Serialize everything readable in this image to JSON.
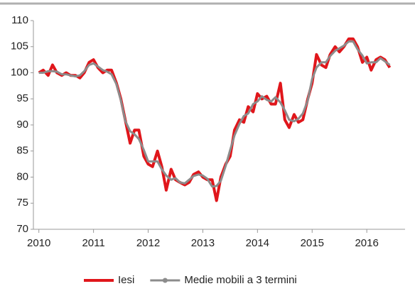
{
  "chart_data": {
    "type": "line",
    "x": [
      2010,
      2010.08,
      2010.17,
      2010.25,
      2010.33,
      2010.42,
      2010.5,
      2010.58,
      2010.67,
      2010.75,
      2010.83,
      2010.92,
      2011,
      2011.08,
      2011.17,
      2011.25,
      2011.33,
      2011.42,
      2011.5,
      2011.58,
      2011.67,
      2011.75,
      2011.83,
      2011.92,
      2012,
      2012.08,
      2012.17,
      2012.25,
      2012.33,
      2012.42,
      2012.5,
      2012.58,
      2012.67,
      2012.75,
      2012.83,
      2012.92,
      2013,
      2013.08,
      2013.17,
      2013.25,
      2013.33,
      2013.42,
      2013.5,
      2013.58,
      2013.67,
      2013.75,
      2013.83,
      2013.92,
      2014,
      2014.08,
      2014.17,
      2014.25,
      2014.33,
      2014.42,
      2014.5,
      2014.58,
      2014.67,
      2014.75,
      2014.83,
      2014.92,
      2015,
      2015.08,
      2015.17,
      2015.25,
      2015.33,
      2015.42,
      2015.5,
      2015.58,
      2015.67,
      2015.75,
      2015.83,
      2015.92,
      2016,
      2016.08,
      2016.17,
      2016.25,
      2016.33,
      2016.42
    ],
    "series": [
      {
        "name": "Iesi",
        "color": "#e0161b",
        "values": [
          100,
          100.5,
          99.5,
          101.5,
          100,
          99.5,
          100,
          99.5,
          99.5,
          99,
          100,
          102,
          102.5,
          101,
          100,
          100.5,
          100.5,
          98,
          95,
          91,
          86.5,
          89,
          89,
          84,
          82.5,
          82,
          85,
          82,
          77.5,
          81.5,
          79.5,
          79,
          78.5,
          79,
          80.5,
          81,
          80,
          79.5,
          79.5,
          75.5,
          80,
          82.5,
          84,
          89,
          91,
          90.5,
          93.5,
          92.5,
          96,
          95,
          95.5,
          94,
          94,
          98,
          91,
          89.5,
          92,
          90.5,
          91,
          95,
          98,
          103.5,
          101.5,
          101,
          103.5,
          105,
          104,
          105,
          106.5,
          106.5,
          105,
          102,
          103,
          100.5,
          102.5,
          103,
          102.5,
          101
        ]
      },
      {
        "name": "Medie mobili a 3 termini",
        "color": "#8c8c8c",
        "values": [
          100,
          100,
          100.3,
          100.3,
          100.2,
          99.7,
          99.7,
          99.5,
          99.3,
          99.5,
          100.3,
          101.5,
          101.8,
          101.2,
          100.5,
          100.2,
          99.7,
          97.8,
          94.7,
          90.8,
          88.8,
          88.2,
          87.3,
          85.2,
          83,
          83,
          83,
          81.5,
          80.3,
          79.5,
          79.8,
          79,
          78.8,
          79.5,
          80.2,
          80.5,
          80.3,
          79.7,
          78.2,
          78.3,
          79.3,
          82.2,
          85.2,
          88,
          90.2,
          91.7,
          92.2,
          94,
          94.5,
          95.5,
          94.8,
          94.5,
          95.3,
          94.3,
          92.8,
          91,
          90.7,
          91.2,
          92.2,
          94.7,
          98.8,
          101,
          102,
          102,
          103.2,
          104.2,
          104.7,
          105.2,
          106,
          106,
          104.5,
          103.3,
          101.8,
          102,
          102,
          102.8,
          102.2,
          101.5
        ]
      }
    ],
    "xlim": [
      2009.9,
      2016.7
    ],
    "xticks": [
      2010,
      2011,
      2012,
      2013,
      2014,
      2015,
      2016
    ],
    "ylim": [
      70,
      110
    ],
    "yticks": [
      70,
      75,
      80,
      85,
      90,
      95,
      100,
      105,
      110
    ],
    "legend": "bottom"
  }
}
